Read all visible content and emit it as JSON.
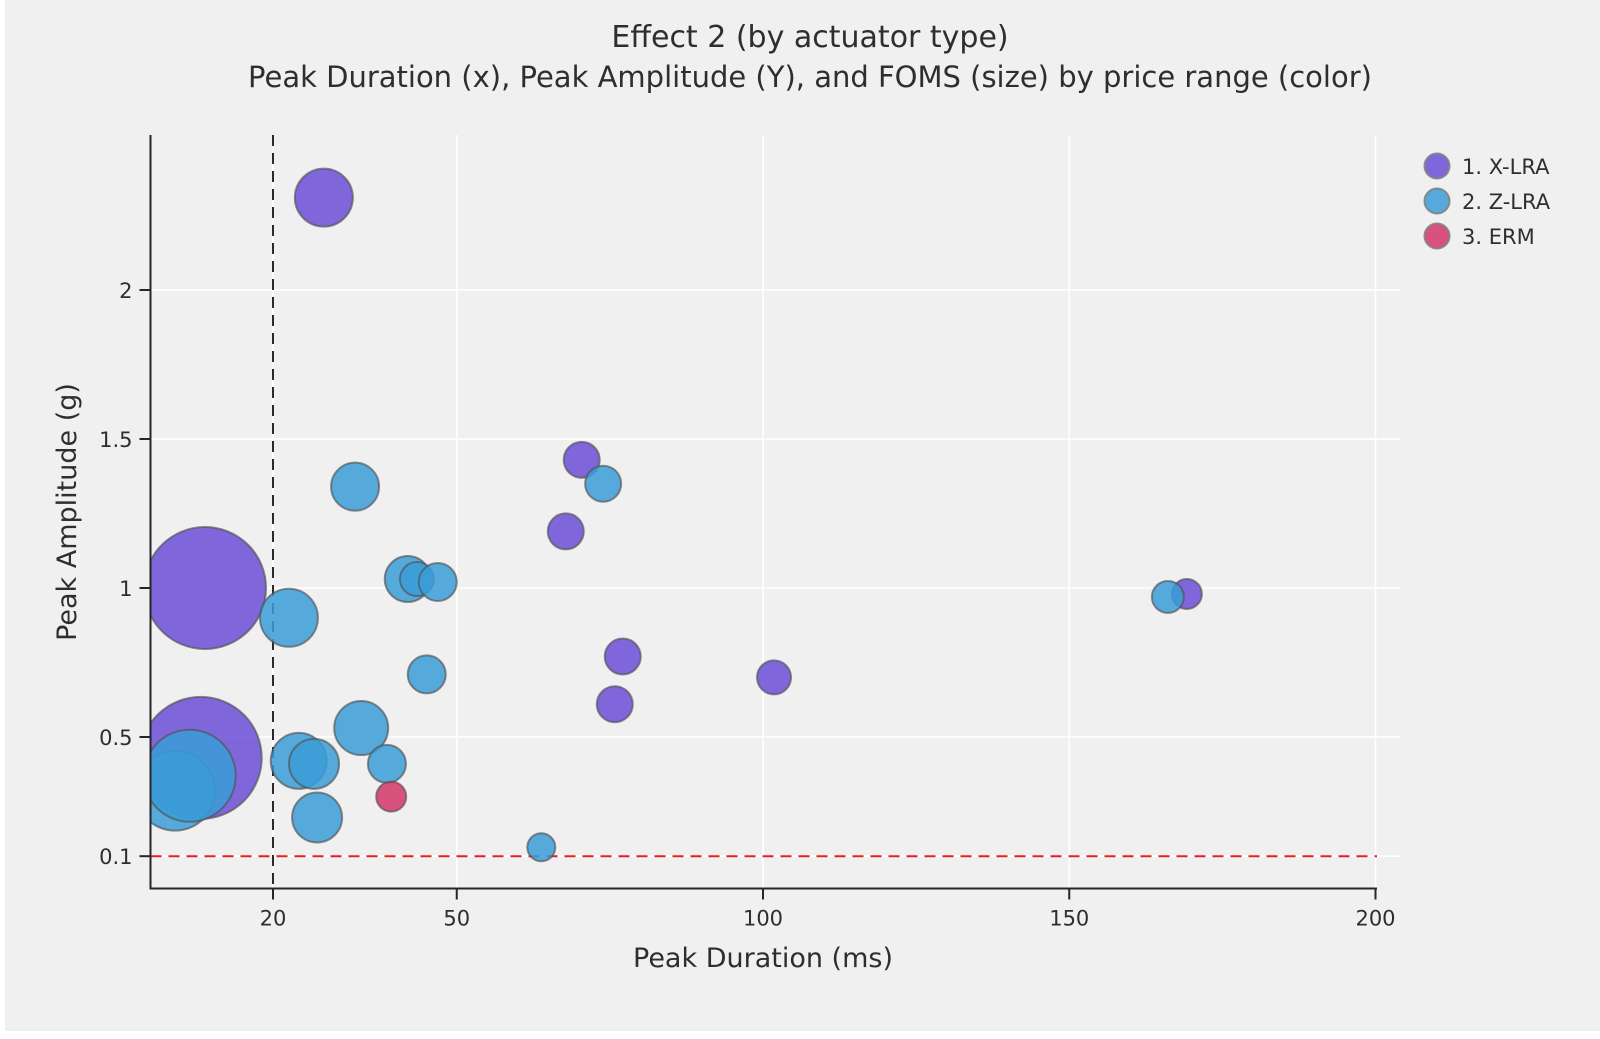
{
  "page": {
    "background_color": "#f0f0f0"
  },
  "chart": {
    "title": "Effect 2 (by actuator type)",
    "subtitle": "Peak Duration (x), Peak Amplitude (Y), and FOMS (size) by price range (color)",
    "xlabel": "Peak Duration (ms)",
    "ylabel": "Peak Amplitude (g)"
  },
  "chart_data": {
    "type": "scatter",
    "variant": "bubble",
    "title": "Effect 2 (by actuator type)",
    "subtitle": "Peak Duration (x), Peak Amplitude (Y), and FOMS (size) by price range (color)",
    "xlabel": "Peak Duration (ms)",
    "ylabel": "Peak Amplitude (g)",
    "size_encoding": "FOMS",
    "color_encoding": "price range",
    "xlim": [
      0,
      203
    ],
    "ylim": [
      0,
      2.52
    ],
    "xticks": [
      "20",
      "50",
      "100",
      "150",
      "200"
    ],
    "xtick_values": [
      20,
      50,
      100,
      150,
      200
    ],
    "yticks": [
      "0.1",
      "0.5",
      "1",
      "1.5",
      "2"
    ],
    "ytick_values": [
      0.1,
      0.5,
      1,
      1.5,
      2
    ],
    "grid": true,
    "gridline_color": "#ffffff",
    "legend_position": "top-right",
    "reference_lines": [
      {
        "axis": "x",
        "value": 20,
        "style": "dashed",
        "color": "#2a2a2a"
      },
      {
        "axis": "y",
        "value": 0.1,
        "style": "dashed",
        "color": "#e3211c"
      }
    ],
    "series": [
      {
        "name": "1. X-LRA",
        "color": "#8066DB",
        "points": [
          {
            "x": 28.3,
            "y": 2.31,
            "r": 29
          },
          {
            "x": 70.4,
            "y": 1.43,
            "r": 18
          },
          {
            "x": 67.8,
            "y": 1.19,
            "r": 18
          },
          {
            "x": 8.9,
            "y": 1.0,
            "r": 61
          },
          {
            "x": 77.1,
            "y": 0.77,
            "r": 18
          },
          {
            "x": 75.8,
            "y": 0.61,
            "r": 18
          },
          {
            "x": 101.8,
            "y": 0.7,
            "r": 17
          },
          {
            "x": 169.2,
            "y": 0.98,
            "r": 15
          },
          {
            "x": 8.2,
            "y": 0.43,
            "r": 61
          }
        ]
      },
      {
        "name": "2. Z-LRA",
        "color": "#55A9DB",
        "points": [
          {
            "x": 4.0,
            "y": 0.32,
            "r": 40
          },
          {
            "x": 6.4,
            "y": 0.37,
            "r": 46
          },
          {
            "x": 33.4,
            "y": 1.34,
            "r": 24
          },
          {
            "x": 73.9,
            "y": 1.35,
            "r": 18
          },
          {
            "x": 22.6,
            "y": 0.9,
            "r": 29
          },
          {
            "x": 42.0,
            "y": 1.03,
            "r": 23
          },
          {
            "x": 43.5,
            "y": 1.03,
            "r": 17
          },
          {
            "x": 46.9,
            "y": 1.02,
            "r": 19
          },
          {
            "x": 45.1,
            "y": 0.71,
            "r": 19
          },
          {
            "x": 166.1,
            "y": 0.97,
            "r": 16
          },
          {
            "x": 34.4,
            "y": 0.53,
            "r": 27
          },
          {
            "x": 24.2,
            "y": 0.42,
            "r": 28
          },
          {
            "x": 26.7,
            "y": 0.41,
            "r": 25
          },
          {
            "x": 38.6,
            "y": 0.41,
            "r": 19
          },
          {
            "x": 27.2,
            "y": 0.23,
            "r": 25
          },
          {
            "x": 63.8,
            "y": 0.13,
            "r": 14
          }
        ]
      },
      {
        "name": "3. ERM",
        "color": "#D9527D",
        "points": [
          {
            "x": 39.3,
            "y": 0.3,
            "r": 15
          }
        ]
      }
    ]
  }
}
